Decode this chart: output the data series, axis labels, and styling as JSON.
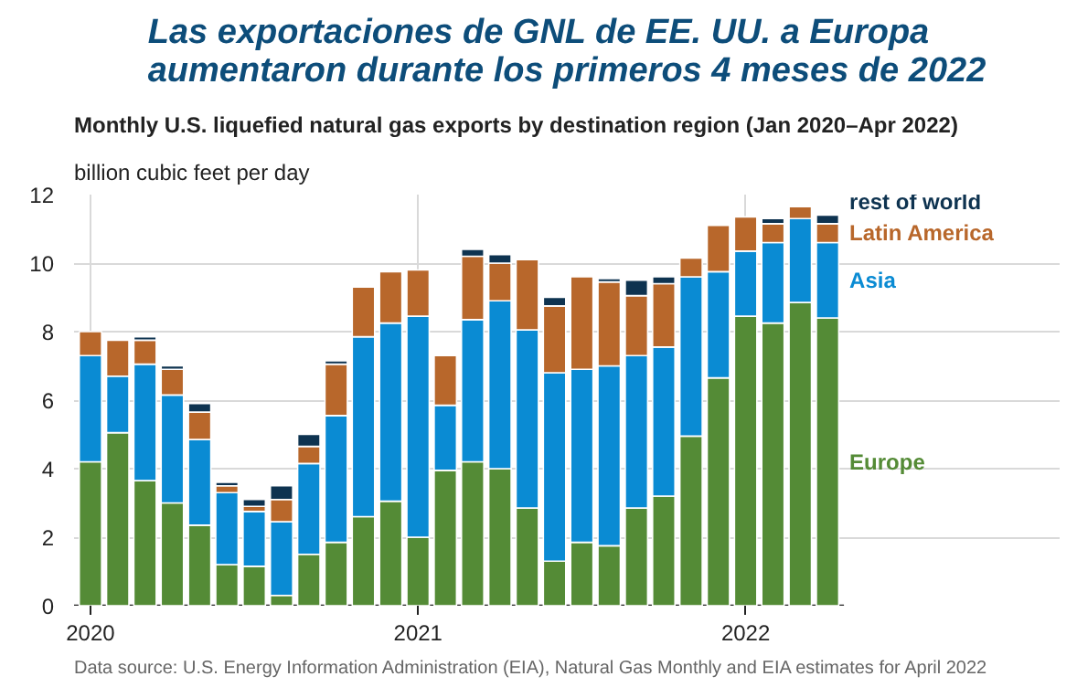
{
  "chart_data": {
    "type": "bar",
    "stacked": true,
    "title": "Las exportaciones de GNL de EE. UU. a Europa\naumentaron durante los primeros 4 meses de 2022",
    "subtitle": "Monthly U.S. liquefied natural gas exports by destination region (Jan 2020–Apr 2022)",
    "ylabel": "billion cubic feet per day",
    "annotations": [
      "Data source: U.S. Energy Information Administration (EIA), Natural Gas Monthly and EIA estimates for April 2022"
    ],
    "categories": [
      "2020",
      null,
      null,
      null,
      null,
      null,
      null,
      null,
      null,
      null,
      null,
      null,
      "2021",
      null,
      null,
      null,
      null,
      null,
      null,
      null,
      null,
      null,
      null,
      null,
      "2022",
      null,
      null,
      null
    ],
    "series": [
      {
        "name": "Europe",
        "color": "#548b36",
        "values": [
          4.2,
          5.05,
          3.65,
          3.0,
          2.35,
          1.2,
          1.15,
          0.3,
          1.5,
          1.85,
          2.6,
          3.05,
          2.0,
          3.95,
          4.2,
          4.0,
          2.85,
          1.3,
          1.85,
          1.75,
          2.85,
          3.2,
          4.95,
          6.65,
          8.45,
          8.25,
          8.85,
          8.4
        ]
      },
      {
        "name": "Asia",
        "color": "#0a8bd3",
        "values": [
          3.1,
          1.65,
          3.4,
          3.15,
          2.5,
          2.1,
          1.6,
          2.15,
          2.65,
          3.7,
          5.25,
          5.2,
          6.45,
          1.9,
          4.15,
          4.9,
          5.2,
          5.5,
          5.05,
          5.25,
          4.45,
          4.35,
          4.65,
          3.1,
          1.9,
          2.35,
          2.45,
          2.2
        ]
      },
      {
        "name": "Latin America",
        "color": "#b8672b",
        "values": [
          0.7,
          1.05,
          0.7,
          0.75,
          0.8,
          0.2,
          0.15,
          0.65,
          0.5,
          1.5,
          1.45,
          1.5,
          1.35,
          1.45,
          1.85,
          1.1,
          2.05,
          1.95,
          2.7,
          2.45,
          1.75,
          1.85,
          0.55,
          1.35,
          1.0,
          0.55,
          0.35,
          0.55
        ]
      },
      {
        "name": "rest of world",
        "color": "#0e3350",
        "values": [
          null,
          null,
          0.1,
          0.1,
          0.25,
          0.1,
          0.2,
          0.4,
          0.35,
          0.1,
          null,
          null,
          null,
          null,
          0.2,
          0.25,
          null,
          0.25,
          null,
          0.1,
          0.45,
          0.2,
          null,
          null,
          null,
          0.15,
          null,
          0.25
        ]
      }
    ],
    "ylim": [
      0,
      12
    ],
    "yticks": [
      0,
      2,
      4,
      6,
      8,
      10,
      12
    ],
    "grid": true
  }
}
